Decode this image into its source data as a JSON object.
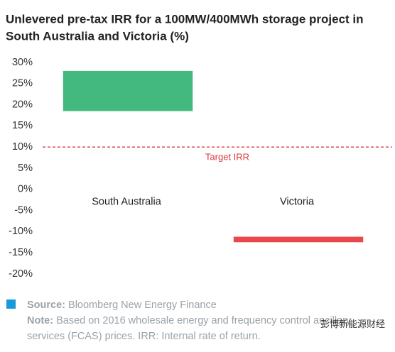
{
  "chart_data": {
    "type": "range_bar",
    "title": [
      "Unlevered pre-tax IRR for a 100MW/400MWh storage project in",
      "South Australia and Victoria (%)"
    ],
    "categories": [
      "South Australia",
      "Victoria"
    ],
    "low": [
      18.5,
      -12.5
    ],
    "high": [
      28,
      -11.2
    ],
    "colors": [
      "#43b97f",
      "#e8474b"
    ],
    "ylim": [
      -20,
      30
    ],
    "yticks": [
      {
        "value": 30,
        "label": "30%"
      },
      {
        "value": 25,
        "label": "25%"
      },
      {
        "value": 20,
        "label": "20%"
      },
      {
        "value": 15,
        "label": "15%"
      },
      {
        "value": 10,
        "label": "10%"
      },
      {
        "value": 5,
        "label": "5%"
      },
      {
        "value": 0,
        "label": "0%"
      },
      {
        "value": -5,
        "label": "-5%"
      },
      {
        "value": -10,
        "label": "-10%"
      },
      {
        "value": -15,
        "label": "-15%"
      },
      {
        "value": -20,
        "label": "-20%"
      }
    ],
    "reference_line": {
      "value": 10,
      "label": "Target IRR",
      "color": "#d9383c"
    },
    "grid": false
  },
  "footer": {
    "source_label": "Source:",
    "source_text": "Bloomberg New Energy Finance",
    "note_label": "Note:",
    "note_lines": [
      "Based on 2016 wholesale energy and frequency control ancillary",
      "services (FCAS) prices. IRR: Internal rate of return."
    ],
    "watermark": "彭博新能源财经"
  }
}
